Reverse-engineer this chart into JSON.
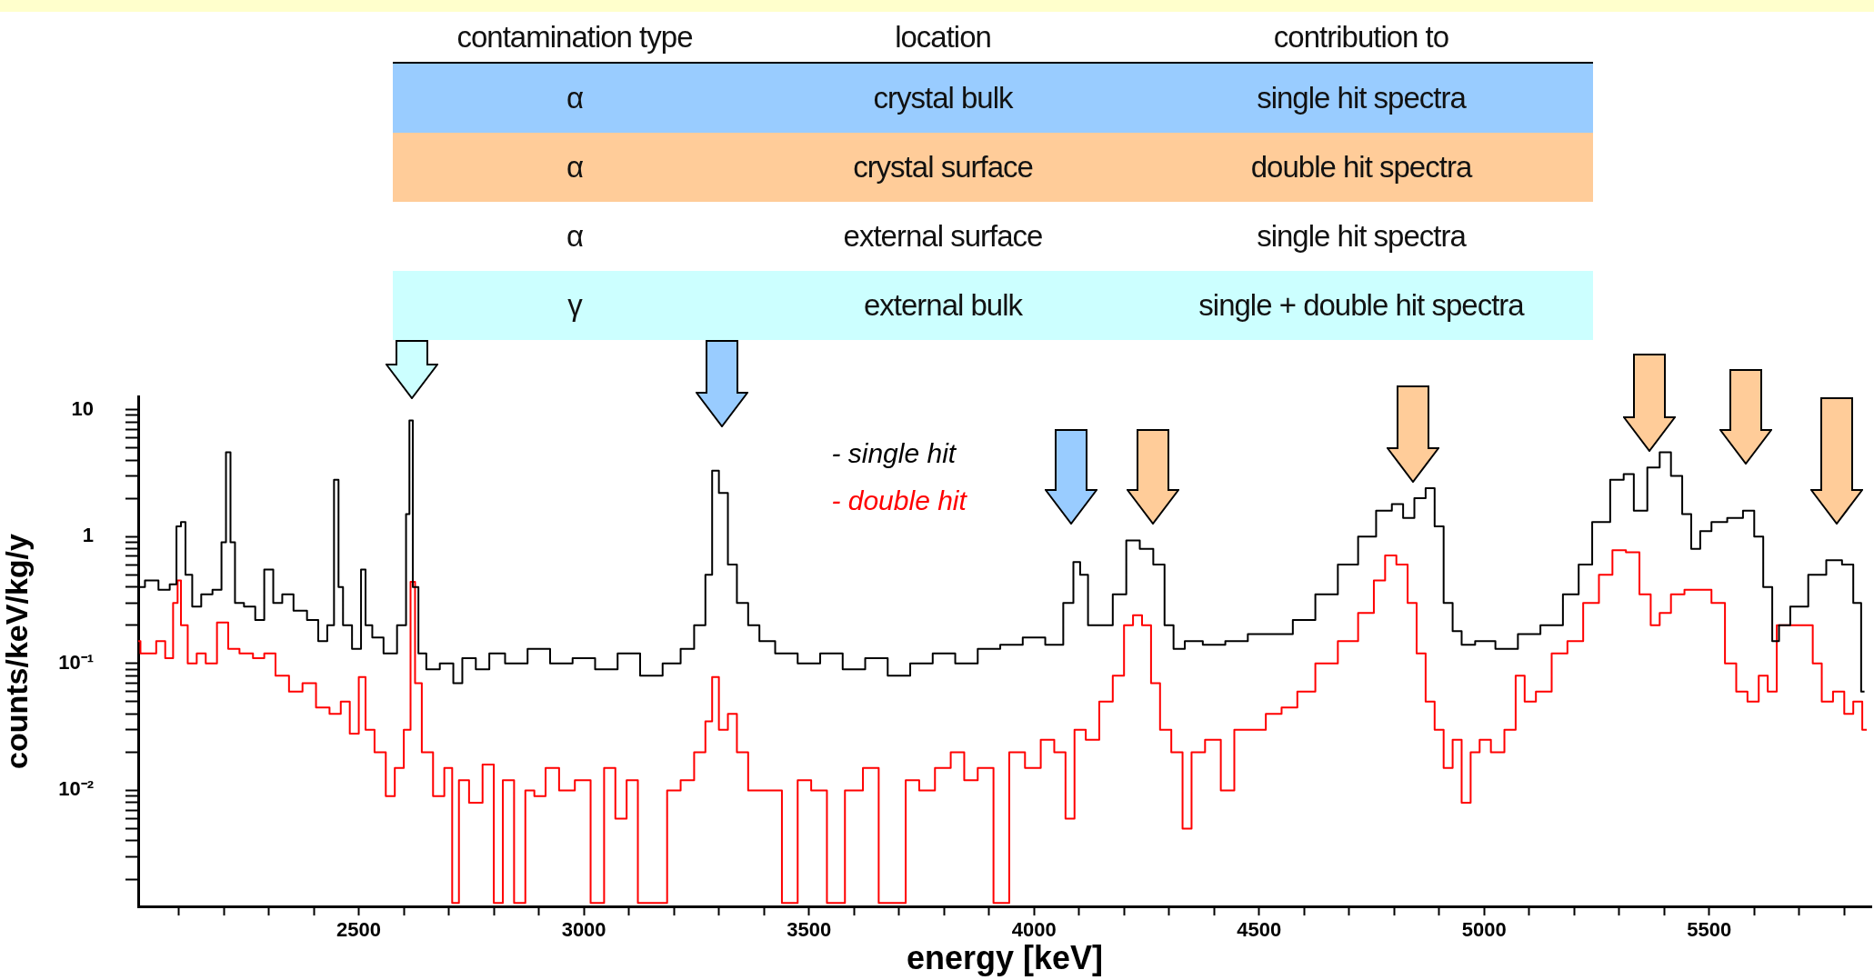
{
  "chart_data": {
    "type": "step",
    "xlabel": "energy [keV]",
    "ylabel": "counts/keV/kg/y",
    "log": "y",
    "legend": "top",
    "xlim": [
      2010,
      5860
    ],
    "ylim": [
      0.00122,
      12.7
    ],
    "xticks": [
      {
        "value": 2100,
        "label": null
      },
      {
        "value": 2200,
        "label": null
      },
      {
        "value": 2300,
        "label": null
      },
      {
        "value": 2400,
        "label": null
      },
      2500,
      {
        "value": 2600,
        "label": null
      },
      {
        "value": 2700,
        "label": null
      },
      {
        "value": 2800,
        "label": null
      },
      {
        "value": 2900,
        "label": null
      },
      3000,
      {
        "value": 3100,
        "label": null
      },
      {
        "value": 3200,
        "label": null
      },
      {
        "value": 3300,
        "label": null
      },
      {
        "value": 3400,
        "label": null
      },
      3500,
      {
        "value": 3600,
        "label": null
      },
      {
        "value": 3700,
        "label": null
      },
      {
        "value": 3800,
        "label": null
      },
      {
        "value": 3900,
        "label": null
      },
      4000,
      {
        "value": 4100,
        "label": null
      },
      {
        "value": 4200,
        "label": null
      },
      {
        "value": 4300,
        "label": null
      },
      {
        "value": 4400,
        "label": null
      },
      4500,
      {
        "value": 4600,
        "label": null
      },
      {
        "value": 4700,
        "label": null
      },
      {
        "value": 4800,
        "label": null
      },
      {
        "value": 4900,
        "label": null
      },
      5000,
      {
        "value": 5100,
        "label": null
      },
      {
        "value": 5200,
        "label": null
      },
      {
        "value": 5300,
        "label": null
      },
      {
        "value": 5400,
        "label": null
      },
      5500,
      {
        "value": 5600,
        "label": null
      },
      {
        "value": 5700,
        "label": null
      },
      {
        "value": 5800,
        "label": null
      }
    ],
    "yticks": [
      {
        "value": 0.002,
        "label": null
      },
      {
        "value": 0.003,
        "label": null
      },
      {
        "value": 0.004,
        "label": null
      },
      {
        "value": 0.005,
        "label": null
      },
      {
        "value": 0.006,
        "label": null
      },
      {
        "value": 0.007,
        "label": null
      },
      {
        "value": 0.008,
        "label": null
      },
      {
        "value": 0.009,
        "label": null
      },
      {
        "value": 0.01,
        "label": "10⁻²"
      },
      {
        "value": 0.02,
        "label": null
      },
      {
        "value": 0.03,
        "label": null
      },
      {
        "value": 0.04,
        "label": null
      },
      {
        "value": 0.05,
        "label": null
      },
      {
        "value": 0.06,
        "label": null
      },
      {
        "value": 0.07,
        "label": null
      },
      {
        "value": 0.08,
        "label": null
      },
      {
        "value": 0.09,
        "label": null
      },
      {
        "value": 0.1,
        "label": "10⁻¹"
      },
      {
        "value": 0.2,
        "label": null
      },
      {
        "value": 0.3,
        "label": null
      },
      {
        "value": 0.4,
        "label": null
      },
      {
        "value": 0.5,
        "label": null
      },
      {
        "value": 0.6,
        "label": null
      },
      {
        "value": 0.7,
        "label": null
      },
      {
        "value": 0.8,
        "label": null
      },
      {
        "value": 0.9,
        "label": null
      },
      1,
      {
        "value": 2,
        "label": null
      },
      {
        "value": 3,
        "label": null
      },
      {
        "value": 4,
        "label": null
      },
      {
        "value": 5,
        "label": null
      },
      {
        "value": 6,
        "label": null
      },
      {
        "value": 7,
        "label": null
      },
      {
        "value": 8,
        "label": null
      },
      {
        "value": 9,
        "label": null
      },
      10
    ],
    "annotations": [
      "contamination type",
      "location",
      "contribution to",
      "α",
      "crystal bulk",
      "single hit spectra",
      "α",
      "crystal surface",
      "double hit spectra",
      "α",
      "external surface",
      "single hit spectra",
      "γ",
      "external bulk",
      "single + double hit spectra"
    ],
    "series": [
      {
        "name": "- single hit",
        "color": "#000000",
        "x": [
          2010,
          2040,
          2070,
          2090,
          2100,
          2110,
          2120,
          2140,
          2160,
          2190,
          2200,
          2210,
          2220,
          2230,
          2260,
          2280,
          2300,
          2320,
          2340,
          2370,
          2400,
          2420,
          2440,
          2450,
          2460,
          2470,
          2500,
          2510,
          2520,
          2540,
          2570,
          2600,
          2610,
          2615,
          2625,
          2640,
          2660,
          2700,
          2720,
          2740,
          2780,
          2800,
          2850,
          2900,
          2950,
          3000,
          3050,
          3100,
          3150,
          3200,
          3230,
          3260,
          3280,
          3290,
          3310,
          3330,
          3350,
          3380,
          3400,
          3450,
          3500,
          3550,
          3600,
          3650,
          3700,
          3750,
          3800,
          3850,
          3900,
          3950,
          4000,
          4050,
          4080,
          4095,
          4110,
          4130,
          4160,
          4190,
          4220,
          4250,
          4280,
          4300,
          4320,
          4350,
          4400,
          4450,
          4500,
          4550,
          4600,
          4650,
          4700,
          4740,
          4780,
          4810,
          4830,
          4860,
          4880,
          4900,
          4920,
          4940,
          4960,
          5000,
          5050,
          5100,
          5150,
          5200,
          5220,
          5260,
          5300,
          5320,
          5345,
          5380,
          5400,
          5430,
          5450,
          5470,
          5490,
          5520,
          5560,
          5590,
          5610,
          5630,
          5650,
          5660,
          5700,
          5740,
          5780,
          5810,
          5830,
          5845
        ],
        "values": [
          0.4,
          0.45,
          0.38,
          0.42,
          1.2,
          1.3,
          0.5,
          0.28,
          0.35,
          0.38,
          0.9,
          4.6,
          0.9,
          0.3,
          0.28,
          0.22,
          0.55,
          0.3,
          0.35,
          0.26,
          0.22,
          0.15,
          0.2,
          2.8,
          0.4,
          0.2,
          0.13,
          0.55,
          0.2,
          0.16,
          0.12,
          0.2,
          1.5,
          8.2,
          0.4,
          0.12,
          0.09,
          0.1,
          0.07,
          0.11,
          0.09,
          0.12,
          0.1,
          0.13,
          0.1,
          0.11,
          0.09,
          0.12,
          0.08,
          0.1,
          0.13,
          0.2,
          0.5,
          3.3,
          2.2,
          0.6,
          0.3,
          0.2,
          0.15,
          0.12,
          0.1,
          0.12,
          0.09,
          0.11,
          0.08,
          0.1,
          0.12,
          0.1,
          0.13,
          0.14,
          0.16,
          0.14,
          0.3,
          0.63,
          0.5,
          0.2,
          0.2,
          0.35,
          0.93,
          0.8,
          0.6,
          0.2,
          0.13,
          0.15,
          0.14,
          0.15,
          0.17,
          0.17,
          0.22,
          0.35,
          0.6,
          1.0,
          1.6,
          1.8,
          1.4,
          2.0,
          2.4,
          1.2,
          0.3,
          0.18,
          0.14,
          0.15,
          0.13,
          0.17,
          0.2,
          0.35,
          0.6,
          1.3,
          2.8,
          3.1,
          1.6,
          3.5,
          4.6,
          3.0,
          1.5,
          0.8,
          1.1,
          1.3,
          1.4,
          1.6,
          1.0,
          0.4,
          0.15,
          0.2,
          0.28,
          0.5,
          0.65,
          0.6,
          0.3,
          0.06
        ]
      },
      {
        "name": "- double hit",
        "color": "#ff0000",
        "x": [
          2010,
          2020,
          2040,
          2060,
          2080,
          2095,
          2100,
          2110,
          2130,
          2150,
          2170,
          2200,
          2220,
          2250,
          2280,
          2300,
          2330,
          2360,
          2390,
          2420,
          2450,
          2470,
          2490,
          2510,
          2520,
          2550,
          2570,
          2590,
          2610,
          2620,
          2630,
          2650,
          2680,
          2700,
          2715,
          2730,
          2760,
          2790,
          2810,
          2830,
          2860,
          2880,
          2900,
          2930,
          2960,
          3000,
          3030,
          3060,
          3080,
          3110,
          3130,
          3170,
          3200,
          3230,
          3260,
          3280,
          3290,
          3310,
          3330,
          3350,
          3380,
          3420,
          3460,
          3490,
          3520,
          3560,
          3600,
          3640,
          3670,
          3700,
          3730,
          3760,
          3800,
          3830,
          3860,
          3890,
          3930,
          3960,
          4000,
          4030,
          4060,
          4080,
          4100,
          4130,
          4160,
          4190,
          4210,
          4230,
          4250,
          4270,
          4290,
          4320,
          4340,
          4360,
          4400,
          4430,
          4460,
          4500,
          4530,
          4570,
          4600,
          4650,
          4700,
          4740,
          4770,
          4790,
          4820,
          4840,
          4860,
          4880,
          4900,
          4920,
          4940,
          4960,
          4980,
          5000,
          5030,
          5060,
          5080,
          5100,
          5130,
          5170,
          5200,
          5240,
          5270,
          5300,
          5330,
          5360,
          5380,
          5400,
          5430,
          5460,
          5490,
          5520,
          5550,
          5570,
          5600,
          5620,
          5640,
          5660,
          5690,
          5720,
          5740,
          5760,
          5790,
          5810,
          5830,
          5850
        ],
        "values": [
          0.15,
          0.12,
          0.12,
          0.15,
          0.11,
          0.3,
          0.45,
          0.2,
          0.1,
          0.12,
          0.1,
          0.21,
          0.13,
          0.12,
          0.11,
          0.12,
          0.08,
          0.06,
          0.07,
          0.045,
          0.04,
          0.05,
          0.028,
          0.078,
          0.03,
          0.02,
          0.009,
          0.015,
          0.03,
          0.44,
          0.07,
          0.02,
          0.009,
          0.015,
          0.0013,
          0.012,
          0.008,
          0.016,
          0.0013,
          0.012,
          0.0013,
          0.01,
          0.009,
          0.015,
          0.01,
          0.012,
          0.0013,
          0.015,
          0.006,
          0.012,
          0.0013,
          0.0013,
          0.01,
          0.012,
          0.02,
          0.035,
          0.078,
          0.03,
          0.04,
          0.02,
          0.01,
          0.01,
          0.0013,
          0.012,
          0.01,
          0.0013,
          0.01,
          0.015,
          0.0013,
          0.0013,
          0.012,
          0.01,
          0.015,
          0.02,
          0.012,
          0.015,
          0.0013,
          0.02,
          0.015,
          0.025,
          0.02,
          0.006,
          0.03,
          0.025,
          0.05,
          0.08,
          0.2,
          0.24,
          0.2,
          0.07,
          0.03,
          0.02,
          0.005,
          0.02,
          0.025,
          0.01,
          0.03,
          0.03,
          0.04,
          0.045,
          0.06,
          0.1,
          0.15,
          0.25,
          0.45,
          0.71,
          0.6,
          0.3,
          0.12,
          0.05,
          0.03,
          0.015,
          0.025,
          0.008,
          0.02,
          0.025,
          0.02,
          0.03,
          0.08,
          0.05,
          0.06,
          0.12,
          0.15,
          0.3,
          0.5,
          0.78,
          0.75,
          0.35,
          0.2,
          0.25,
          0.35,
          0.38,
          0.38,
          0.3,
          0.1,
          0.06,
          0.05,
          0.08,
          0.06,
          0.2,
          0.2,
          0.2,
          0.1,
          0.05,
          0.06,
          0.04,
          0.05,
          0.03
        ]
      }
    ]
  }
}
